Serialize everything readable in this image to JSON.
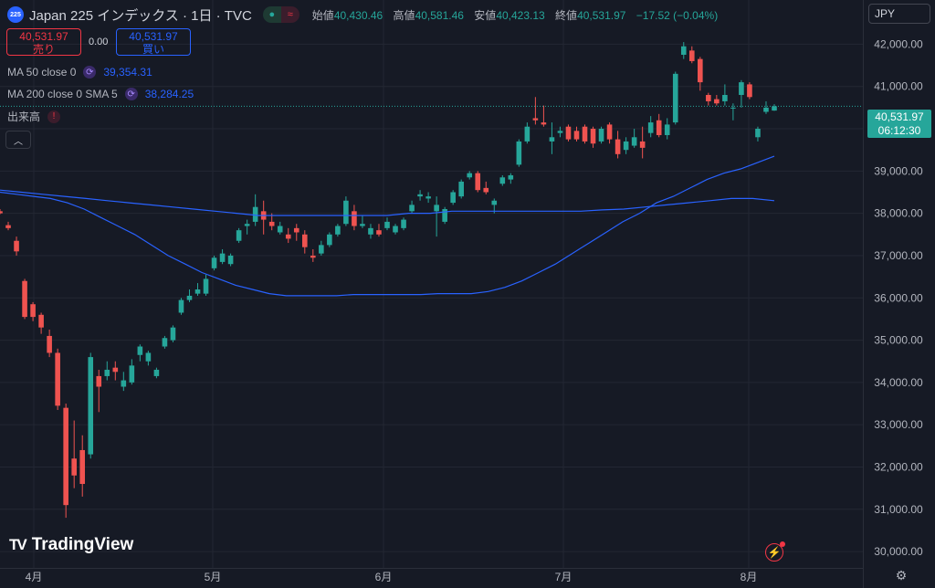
{
  "header": {
    "logo_text": "225",
    "title": "Japan 225 インデックス · 1日 · TVC",
    "labels": {
      "open": "始値",
      "high": "高値",
      "low": "安値",
      "close": "終値"
    },
    "open": "40,430.46",
    "high": "40,581.46",
    "low": "40,423.13",
    "close": "40,531.97",
    "change": "−17.52 (−0.04%)"
  },
  "trade": {
    "sell_price": "40,531.97",
    "sell_label": "売り",
    "spread": "0.00",
    "buy_price": "40,531.97",
    "buy_label": "買い"
  },
  "indicators": {
    "ma50_label": "MA 50 close 0",
    "ma50_value": "39,354.31",
    "ma200_label": "MA 200 close 0 SMA 5",
    "ma200_value": "38,284.25",
    "volume_label": "出来高"
  },
  "currency": "JPY",
  "price_label": {
    "price": "40,531.97",
    "countdown": "06:12:30"
  },
  "brand": "TradingView",
  "colors": {
    "up": "#26a69a",
    "down": "#ef5350",
    "ma": "#2962ff",
    "background": "#161a25"
  },
  "chart_data": {
    "type": "candlestick",
    "y_ticks": [
      "42,000.00",
      "41,000.00",
      "40,000.00",
      "39,000.00",
      "38,000.00",
      "37,000.00",
      "36,000.00",
      "35,000.00",
      "34,000.00",
      "33,000.00",
      "32,000.00",
      "31,000.00",
      "30,000.00"
    ],
    "x_ticks": [
      "4月",
      "5月",
      "6月",
      "7月",
      "8月"
    ],
    "ylim": [
      29700,
      42700
    ],
    "candles": [
      [
        38050,
        38100,
        37980,
        38000
      ],
      [
        37720,
        37800,
        37600,
        37650
      ],
      [
        37350,
        37450,
        37000,
        37100
      ],
      [
        36400,
        36450,
        35500,
        35550
      ],
      [
        35850,
        35900,
        35450,
        35550
      ],
      [
        35600,
        35650,
        35150,
        35300
      ],
      [
        35100,
        35250,
        34600,
        34700
      ],
      [
        34700,
        34800,
        33350,
        33450
      ],
      [
        33400,
        33500,
        30800,
        31100
      ],
      [
        32200,
        33100,
        31500,
        31800
      ],
      [
        32400,
        32750,
        31300,
        31600
      ],
      [
        32300,
        34700,
        32200,
        34600
      ],
      [
        34150,
        34300,
        33300,
        33900
      ],
      [
        34150,
        34500,
        34050,
        34300
      ],
      [
        34350,
        34500,
        34050,
        34250
      ],
      [
        33900,
        34250,
        33800,
        34050
      ],
      [
        34000,
        34550,
        33950,
        34400
      ],
      [
        34650,
        34900,
        34500,
        34850
      ],
      [
        34500,
        34750,
        34400,
        34700
      ],
      [
        34150,
        34350,
        34100,
        34300
      ],
      [
        34850,
        35100,
        34800,
        35050
      ],
      [
        35000,
        35350,
        34950,
        35300
      ],
      [
        35650,
        36000,
        35600,
        35950
      ],
      [
        35950,
        36200,
        35900,
        36050
      ],
      [
        36100,
        36350,
        36050,
        36200
      ],
      [
        36100,
        36550,
        36050,
        36450
      ],
      [
        36700,
        37000,
        36650,
        36950
      ],
      [
        36850,
        37150,
        36800,
        37050
      ],
      [
        36800,
        37050,
        36750,
        37000
      ],
      [
        37350,
        37650,
        37300,
        37600
      ],
      [
        37700,
        37850,
        37500,
        37750
      ],
      [
        37800,
        38450,
        37700,
        38150
      ],
      [
        38050,
        38300,
        37500,
        37850
      ],
      [
        37800,
        38000,
        37600,
        37700
      ],
      [
        37550,
        37800,
        37500,
        37700
      ],
      [
        37500,
        37650,
        37300,
        37400
      ],
      [
        37650,
        37750,
        37350,
        37550
      ],
      [
        37500,
        37600,
        37050,
        37200
      ],
      [
        37000,
        37150,
        36850,
        36950
      ],
      [
        37050,
        37350,
        37000,
        37250
      ],
      [
        37250,
        37550,
        37200,
        37500
      ],
      [
        37500,
        37750,
        37450,
        37700
      ],
      [
        37750,
        38400,
        37700,
        38300
      ],
      [
        38050,
        38200,
        37600,
        37700
      ],
      [
        37700,
        37950,
        37650,
        37750
      ],
      [
        37500,
        37750,
        37400,
        37650
      ],
      [
        37600,
        37750,
        37450,
        37500
      ],
      [
        37650,
        37900,
        37600,
        37800
      ],
      [
        37550,
        37750,
        37500,
        37700
      ],
      [
        37650,
        37900,
        37600,
        37850
      ],
      [
        38050,
        38300,
        38000,
        38200
      ],
      [
        38400,
        38550,
        38300,
        38450
      ],
      [
        38350,
        38500,
        38250,
        38400
      ],
      [
        38050,
        38400,
        37450,
        38200
      ],
      [
        37800,
        38150,
        37750,
        38100
      ],
      [
        38250,
        38550,
        38200,
        38500
      ],
      [
        38400,
        38800,
        38350,
        38750
      ],
      [
        38850,
        39000,
        38800,
        38950
      ],
      [
        38950,
        39000,
        38500,
        38550
      ],
      [
        38600,
        38750,
        38450,
        38500
      ],
      [
        38200,
        38350,
        38000,
        38300
      ],
      [
        38700,
        38900,
        38650,
        38850
      ],
      [
        38800,
        38950,
        38700,
        38900
      ],
      [
        39150,
        39750,
        39100,
        39700
      ],
      [
        39700,
        40150,
        39650,
        40050
      ],
      [
        40250,
        40750,
        40100,
        40200
      ],
      [
        40150,
        40550,
        40050,
        40100
      ],
      [
        39700,
        40150,
        39400,
        39800
      ],
      [
        39900,
        40050,
        39800,
        39950
      ],
      [
        40050,
        40100,
        39700,
        39750
      ],
      [
        39950,
        40050,
        39700,
        39750
      ],
      [
        40050,
        40100,
        39650,
        39700
      ],
      [
        40000,
        40050,
        39550,
        39650
      ],
      [
        39700,
        40050,
        39650,
        40000
      ],
      [
        40100,
        40150,
        39650,
        39750
      ],
      [
        39750,
        39950,
        39300,
        39400
      ],
      [
        39500,
        39800,
        39400,
        39700
      ],
      [
        39600,
        40000,
        39550,
        39800
      ],
      [
        39700,
        40050,
        39300,
        39550
      ],
      [
        39900,
        40300,
        39800,
        40150
      ],
      [
        40200,
        40350,
        39800,
        39850
      ],
      [
        39850,
        40250,
        39750,
        40100
      ],
      [
        40150,
        41350,
        40100,
        41300
      ],
      [
        41750,
        42050,
        41650,
        41950
      ],
      [
        41850,
        41950,
        41550,
        41600
      ],
      [
        41650,
        41700,
        40900,
        41100
      ],
      [
        40800,
        40850,
        40550,
        40650
      ],
      [
        40700,
        40800,
        40550,
        40600
      ],
      [
        40650,
        41050,
        40550,
        40800
      ],
      [
        40500,
        40600,
        40200,
        40500
      ],
      [
        40800,
        41150,
        40500,
        41100
      ],
      [
        41050,
        41100,
        40700,
        40750
      ],
      [
        39800,
        40050,
        39700,
        40000
      ],
      [
        40400,
        40650,
        40350,
        40500
      ],
      [
        40430.46,
        40581.46,
        40423.13,
        40531.97
      ]
    ],
    "series": [
      {
        "name": "MA 50 close 0",
        "values": [
          38500,
          38450,
          38400,
          38350,
          38250,
          38100,
          37900,
          37700,
          37500,
          37250,
          37000,
          36800,
          36600,
          36450,
          36300,
          36200,
          36100,
          36050,
          36050,
          36050,
          36050,
          36080,
          36080,
          36080,
          36080,
          36080,
          36100,
          36100,
          36100,
          36150,
          36250,
          36400,
          36600,
          36800,
          37050,
          37300,
          37550,
          37800,
          38000,
          38250,
          38400,
          38600,
          38800,
          38950,
          39050,
          39200,
          39350
        ]
      },
      {
        "name": "MA 200 close 0 SMA 5",
        "values": [
          38550,
          38500,
          38450,
          38400,
          38350,
          38300,
          38250,
          38200,
          38150,
          38100,
          38050,
          38000,
          37950,
          37950,
          37950,
          37950,
          37950,
          37950,
          37950,
          38000,
          38000,
          38050,
          38050,
          38050,
          38050,
          38050,
          38050,
          38050,
          38080,
          38100,
          38150,
          38200,
          38250,
          38300,
          38350,
          38350,
          38300
        ]
      }
    ]
  }
}
